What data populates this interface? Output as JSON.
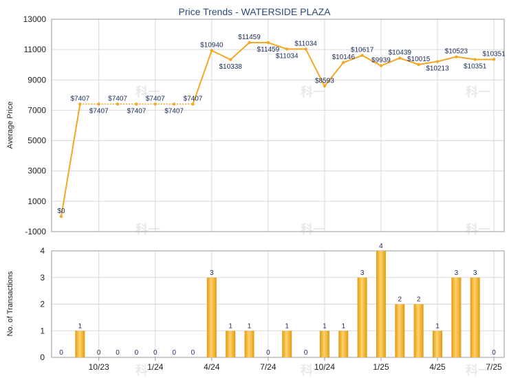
{
  "chart_data": [
    {
      "type": "line",
      "title": "Price Trends - WATERSIDE PLAZA",
      "ylabel": "Average Price",
      "ylim": [
        -1000,
        13000
      ],
      "yticks": [
        -1000,
        1000,
        3000,
        5000,
        7000,
        9000,
        11000,
        13000
      ],
      "grid": true,
      "line_color": "#f5a623",
      "series": [
        {
          "values": [
            0,
            7407,
            7407,
            7407,
            7407,
            7407,
            7407,
            7407,
            10940,
            10338,
            11459,
            11459,
            11034,
            11034,
            8593,
            10146,
            10617,
            9939,
            10439,
            10015,
            10213,
            10523,
            10351,
            10351
          ],
          "labels": [
            "$0",
            "$7407",
            "$7407",
            "$7407",
            "$7407",
            "$7407",
            "$7407",
            "$7407",
            "$10940",
            "$10338",
            "$11459",
            "$11459",
            "$11034",
            "$11034",
            "$8593",
            "$10146",
            "$10617",
            "$9939",
            "$10439",
            "$10015",
            "$10213",
            "$10523",
            "$10351",
            "$10351"
          ],
          "interpolated": [
            false,
            false,
            true,
            true,
            true,
            true,
            true,
            false,
            false,
            false,
            false,
            false,
            false,
            false,
            false,
            false,
            false,
            false,
            false,
            false,
            false,
            false,
            false,
            false
          ]
        }
      ]
    },
    {
      "type": "bar",
      "ylabel": "No. of Transactions",
      "ylim": [
        0,
        4
      ],
      "yticks": [
        0,
        1,
        2,
        3,
        4
      ],
      "grid": true,
      "bar_color": "#f5a623",
      "x_tick_labels": [
        "10/23",
        "1/24",
        "4/24",
        "7/24",
        "10/24",
        "1/25",
        "4/25",
        "7/25"
      ],
      "values": [
        0,
        1,
        0,
        0,
        0,
        0,
        0,
        0,
        3,
        1,
        1,
        0,
        1,
        0,
        1,
        1,
        3,
        4,
        2,
        2,
        1,
        3,
        3,
        0
      ]
    }
  ],
  "watermark": "科一"
}
